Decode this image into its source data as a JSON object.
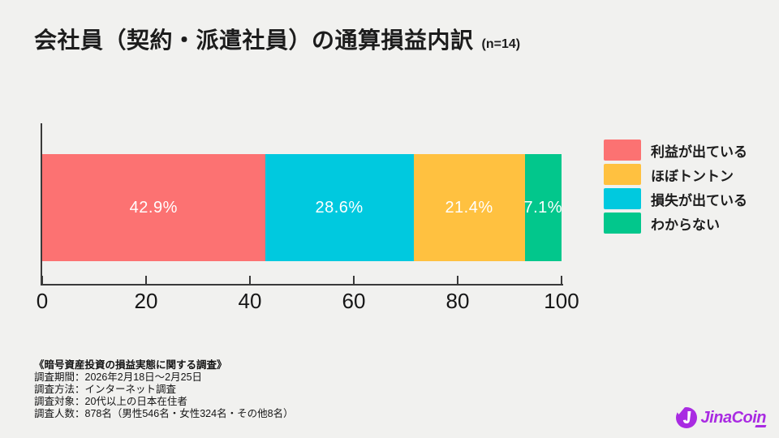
{
  "title": {
    "text": "会社員（契約・派遣社員）の通算損益内訳",
    "sample_size": "(n=14)"
  },
  "chart_data": {
    "type": "bar",
    "variant": "horizontal-stacked",
    "title": "会社員（契約・派遣社員）の通算損益内訳",
    "n": 14,
    "xlim": [
      0,
      100
    ],
    "x_ticks": [
      0,
      20,
      40,
      60,
      80,
      100
    ],
    "grid": false,
    "legend_position": "right",
    "segments": [
      {
        "label": "利益が出ている",
        "value": 42.9,
        "display": "42.9%",
        "color": "#fc7272"
      },
      {
        "label": "損失が出ている",
        "value": 28.6,
        "display": "28.6%",
        "color": "#00c9df"
      },
      {
        "label": "ほぼトントン",
        "value": 21.4,
        "display": "21.4%",
        "color": "#ffc140"
      },
      {
        "label": "わからない",
        "value": 7.1,
        "display": "7.1%",
        "color": "#02c78c"
      }
    ],
    "legend": [
      {
        "label": "利益が出ている",
        "color": "#fc7272"
      },
      {
        "label": "ほぼトントン",
        "color": "#ffc140"
      },
      {
        "label": "損失が出ている",
        "color": "#00c9df"
      },
      {
        "label": "わからない",
        "color": "#02c78c"
      }
    ]
  },
  "footer": {
    "lines": [
      "《暗号資産投資の損益実態に関する調査》",
      "調査期間：2026年2月18日～2月25日",
      "調査方法：インターネット調査",
      "調査対象：20代以上の日本在住者",
      "調査人数：878名（男性546名・女性324名・その他8名）"
    ]
  },
  "logo": {
    "text": "JinaCoin",
    "color": "#a92be2"
  },
  "colors": {
    "background": "#f1f1ef",
    "axis": "#3a3a3a",
    "text": "#1c1c1c"
  }
}
